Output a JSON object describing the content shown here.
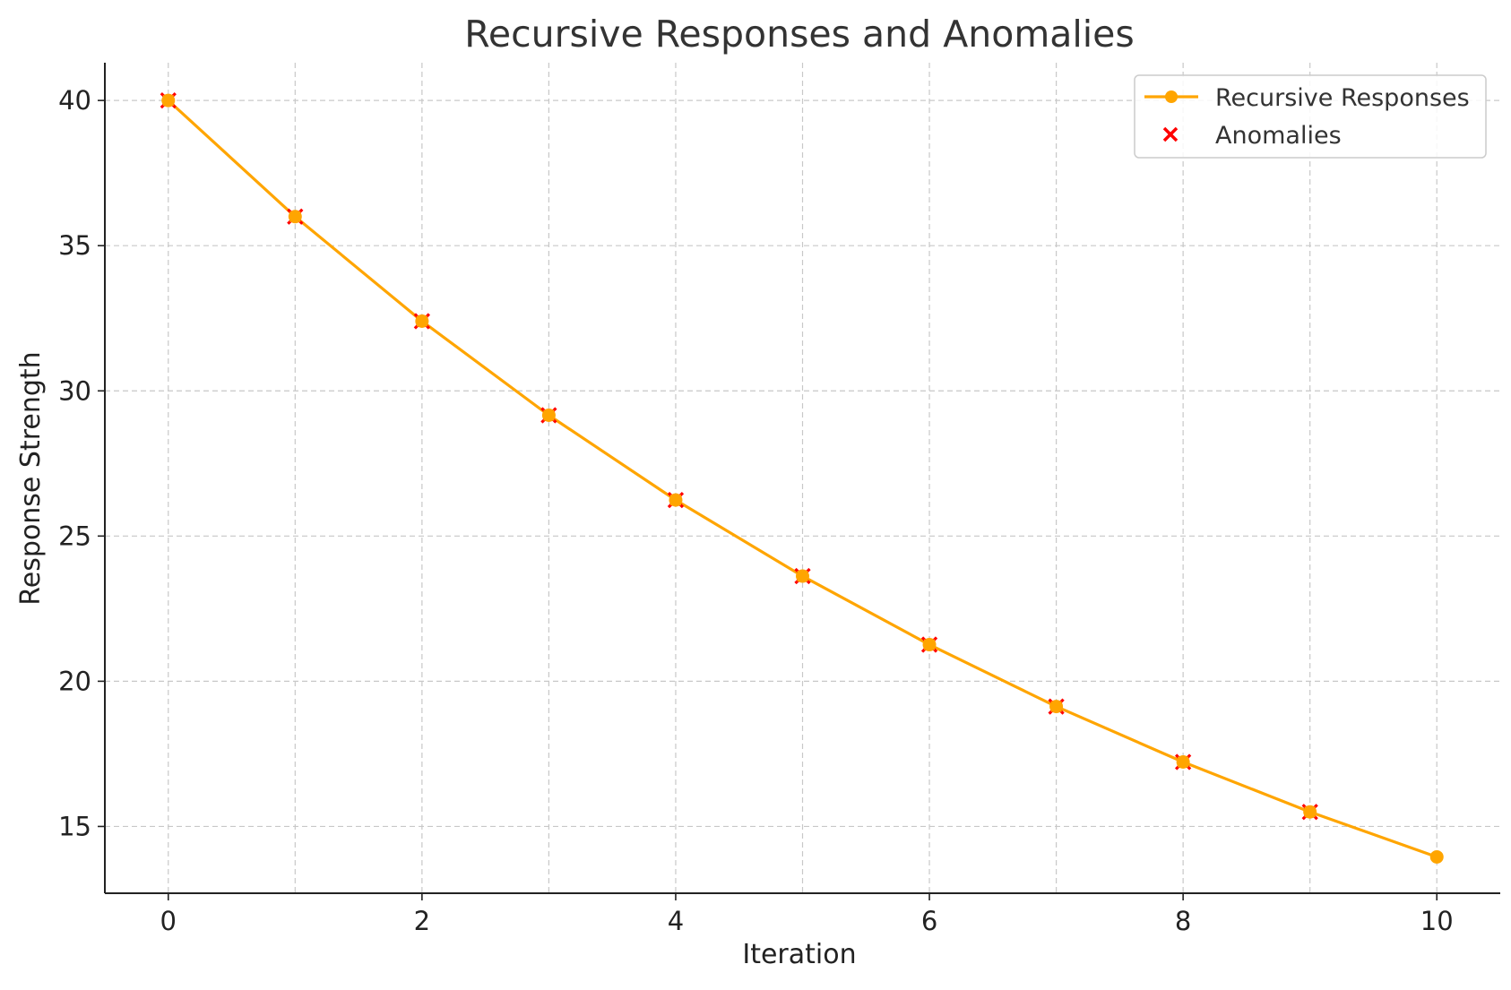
{
  "chart_data": {
    "type": "line",
    "title": "Recursive Responses and Anomalies",
    "xlabel": "Iteration",
    "ylabel": "Response Strength",
    "xlim": [
      -0.5,
      10.5
    ],
    "ylim": [
      12.7,
      41.3
    ],
    "xticks": [
      0,
      2,
      4,
      6,
      8,
      10
    ],
    "yticks": [
      15,
      20,
      25,
      30,
      35,
      40
    ],
    "grid": true,
    "legend_position": "top-right",
    "series": [
      {
        "name": "Recursive Responses",
        "kind": "line",
        "marker": "circle",
        "color": "#FFA500",
        "x": [
          0,
          1,
          2,
          3,
          4,
          5,
          6,
          7,
          8,
          9,
          10
        ],
        "y": [
          40.0,
          36.0,
          32.4,
          29.16,
          26.24,
          23.62,
          21.26,
          19.13,
          17.22,
          15.5,
          13.95
        ]
      },
      {
        "name": "Anomalies",
        "kind": "scatter",
        "marker": "x",
        "color": "#FF0000",
        "x": [
          0,
          1,
          2,
          3,
          4,
          5,
          6,
          7,
          8,
          9
        ],
        "y": [
          40.0,
          36.0,
          32.4,
          29.16,
          26.24,
          23.62,
          21.26,
          19.13,
          17.22,
          15.5
        ]
      }
    ]
  }
}
